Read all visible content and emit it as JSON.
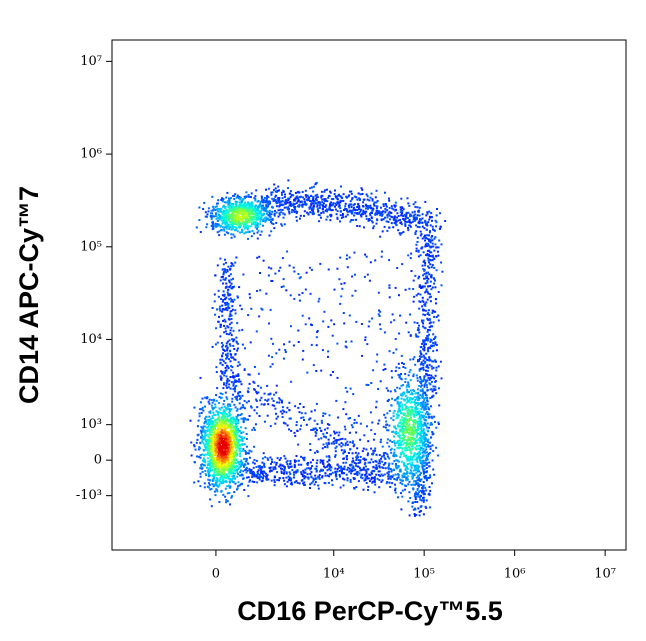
{
  "chart_data": {
    "type": "density-scatter",
    "x_label": "CD16 PerCP-Cy™5.5",
    "y_label": "CD14 APC-Cy™7",
    "xlim": [
      -7000,
      17000000
    ],
    "ylim": [
      -4600,
      17000000
    ],
    "xticks": [
      0,
      {
        "value": 10000,
        "label": "10⁴"
      },
      {
        "value": 100000,
        "label": "10⁵"
      },
      {
        "value": 1000000,
        "label": "10⁶"
      },
      {
        "value": 10000000,
        "label": "10⁷"
      }
    ],
    "yticks": [
      {
        "value": -1000,
        "label": "-10³"
      },
      0,
      {
        "value": 1000,
        "label": "10³"
      },
      {
        "value": 10000,
        "label": "10⁴"
      },
      {
        "value": 100000,
        "label": "10⁵"
      },
      {
        "value": 1000000,
        "label": "10⁶"
      },
      {
        "value": 10000000,
        "label": "10⁷"
      }
    ]
  }
}
